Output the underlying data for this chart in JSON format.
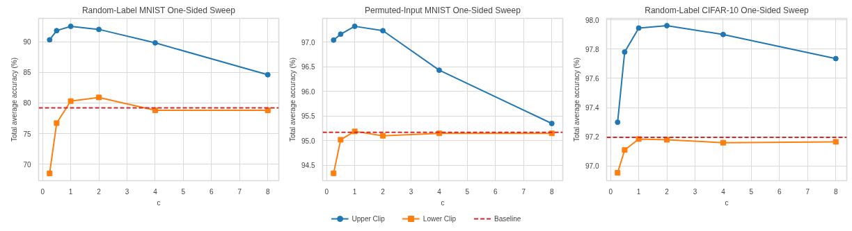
{
  "chart_data": [
    {
      "type": "line",
      "title": "Random-Label MNIST One-Sided Sweep",
      "xlabel": "c",
      "ylabel": "Total average accuracy (%)",
      "x": [
        0.25,
        0.5,
        1,
        2,
        4,
        8
      ],
      "series": [
        {
          "name": "Upper Clip",
          "color": "#1f77b4",
          "marker": "circle",
          "values": [
            90.3,
            91.8,
            92.5,
            92.0,
            89.8,
            84.6
          ]
        },
        {
          "name": "Lower Clip",
          "color": "#ff7f0e",
          "marker": "square",
          "values": [
            68.5,
            76.7,
            80.3,
            80.9,
            78.8,
            78.8
          ]
        }
      ],
      "ref_lines": [
        {
          "axis": "y",
          "value": 79.2,
          "label": "Baseline",
          "color": "#d62728",
          "line_style": "dashed"
        }
      ],
      "xlim": [
        -0.14,
        8.39
      ],
      "xticks": [
        0,
        1,
        2,
        3,
        4,
        5,
        6,
        7,
        8
      ],
      "ylim": [
        67.3,
        93.8
      ],
      "yticks": [
        70,
        75,
        80,
        85,
        90
      ],
      "grid": true,
      "legend": "bottom",
      "line_style": "solid"
    },
    {
      "type": "line",
      "title": "Permuted-Input MNIST One-Sided Sweep",
      "xlabel": "c",
      "ylabel": "Total average accuracy (%)",
      "x": [
        0.25,
        0.5,
        1,
        2,
        4,
        8
      ],
      "series": [
        {
          "color": "#1f77b4",
          "marker": "circle",
          "values": [
            97.04,
            97.16,
            97.32,
            97.23,
            96.43,
            95.35
          ]
        },
        {
          "color": "#ff7f0e",
          "marker": "square",
          "values": [
            94.34,
            95.02,
            95.19,
            95.1,
            95.15,
            95.15
          ]
        }
      ],
      "ref_lines": [
        {
          "axis": "y",
          "value": 95.17,
          "color": "#d62728",
          "line_style": "dashed"
        }
      ],
      "xlim": [
        -0.14,
        8.39
      ],
      "xticks": [
        0,
        1,
        2,
        3,
        4,
        5,
        6,
        7,
        8
      ],
      "ylim": [
        94.19,
        97.48
      ],
      "yticks": [
        {
          "value": 94.5,
          "label": "94.5"
        },
        {
          "value": 95,
          "label": "95.0"
        },
        {
          "value": 95.5,
          "label": "95.5"
        },
        {
          "value": 96,
          "label": "96.0"
        },
        {
          "value": 96.5,
          "label": "96.5"
        },
        {
          "value": 97,
          "label": "97.0"
        }
      ],
      "grid": true,
      "line_style": "solid"
    },
    {
      "type": "line",
      "title": "Random-Label CIFAR-10 One-Sided Sweep",
      "xlabel": "c",
      "ylabel": "Total average accuracy (%)",
      "x": [
        0.25,
        0.5,
        1,
        2,
        4,
        8
      ],
      "series": [
        {
          "color": "#1f77b4",
          "marker": "circle",
          "values": [
            97.3,
            97.78,
            97.944,
            97.96,
            97.9,
            97.735
          ]
        },
        {
          "color": "#ff7f0e",
          "marker": "square",
          "values": [
            96.954,
            97.11,
            97.185,
            97.18,
            97.16,
            97.166
          ]
        }
      ],
      "ref_lines": [
        {
          "axis": "y",
          "value": 97.197,
          "color": "#d62728",
          "line_style": "dashed"
        }
      ],
      "xlim": [
        -0.14,
        8.39
      ],
      "xticks": [
        0,
        1,
        2,
        3,
        4,
        5,
        6,
        7,
        8
      ],
      "ylim": [
        96.9,
        98.01
      ],
      "yticks": [
        {
          "value": 97,
          "label": "97.0"
        },
        {
          "value": 97.2,
          "label": "97.2"
        },
        {
          "value": 97.4,
          "label": "97.4"
        },
        {
          "value": 97.6,
          "label": "97.6"
        },
        {
          "value": 97.8,
          "label": "97.8"
        },
        {
          "value": 98,
          "label": "98.0"
        }
      ],
      "grid": true,
      "line_style": "solid"
    }
  ]
}
